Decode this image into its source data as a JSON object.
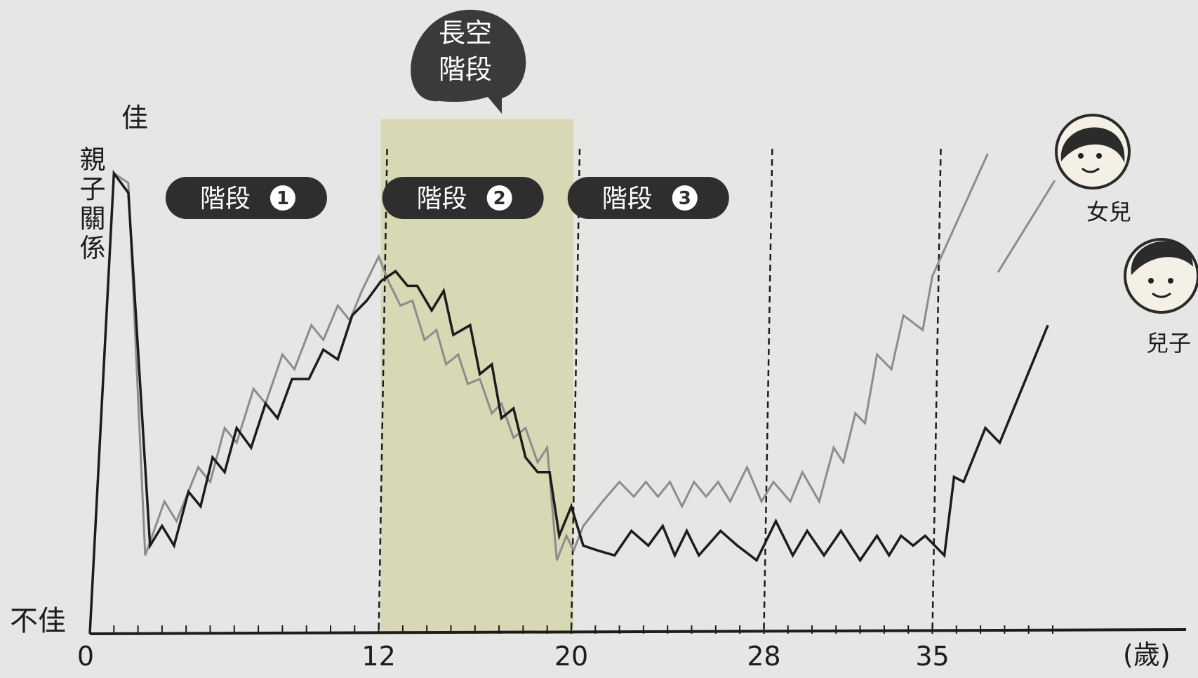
{
  "chart_data": {
    "type": "line",
    "ylabel": "親子關係",
    "y_top_label": "佳",
    "y_bottom_label": "不佳",
    "x_unit": "(歲)",
    "x_ticks": [
      0,
      12,
      20,
      28,
      35
    ],
    "xlim": [
      0,
      40
    ],
    "ylim": [
      0,
      100
    ],
    "grid": false,
    "stages": [
      {
        "label": "階段",
        "number": "1"
      },
      {
        "label": "階段",
        "number": "2"
      },
      {
        "label": "階段",
        "number": "3"
      }
    ],
    "highlight": {
      "from": 12,
      "to": 20,
      "bubble_line1": "長空",
      "bubble_line2": "階段"
    },
    "dashed_lines_at": [
      12,
      20,
      28,
      35
    ],
    "series": [
      {
        "name": "女兒",
        "color": "#8c8c8c",
        "points": [
          [
            0,
            0
          ],
          [
            1,
            94
          ],
          [
            1.6,
            92
          ],
          [
            2.3,
            16
          ],
          [
            3.1,
            27
          ],
          [
            3.6,
            23
          ],
          [
            4.5,
            34
          ],
          [
            5.0,
            31
          ],
          [
            5.6,
            42
          ],
          [
            6.1,
            39
          ],
          [
            6.8,
            50
          ],
          [
            7.3,
            47
          ],
          [
            8.0,
            57
          ],
          [
            8.5,
            54
          ],
          [
            9.2,
            63
          ],
          [
            9.7,
            60
          ],
          [
            10.3,
            67
          ],
          [
            10.8,
            64
          ],
          [
            11.3,
            70
          ],
          [
            12.0,
            77
          ],
          [
            12.4,
            72
          ],
          [
            12.9,
            67
          ],
          [
            13.4,
            68
          ],
          [
            13.9,
            60
          ],
          [
            14.4,
            62
          ],
          [
            14.8,
            55
          ],
          [
            15.3,
            57
          ],
          [
            15.7,
            51
          ],
          [
            16.2,
            52
          ],
          [
            16.7,
            45
          ],
          [
            17.1,
            47
          ],
          [
            17.6,
            40
          ],
          [
            18.1,
            42
          ],
          [
            18.6,
            35
          ],
          [
            19.0,
            38
          ],
          [
            19.4,
            15
          ],
          [
            19.8,
            20
          ],
          [
            20.1,
            17
          ],
          [
            20.5,
            22
          ],
          [
            21.3,
            27
          ],
          [
            22.0,
            31
          ],
          [
            22.6,
            28
          ],
          [
            23.1,
            31
          ],
          [
            23.6,
            28
          ],
          [
            24.1,
            31
          ],
          [
            24.6,
            26
          ],
          [
            25.1,
            31
          ],
          [
            25.6,
            28
          ],
          [
            26.1,
            31
          ],
          [
            26.6,
            27
          ],
          [
            27.3,
            34
          ],
          [
            27.9,
            27
          ],
          [
            28.4,
            31
          ],
          [
            29.1,
            27
          ],
          [
            29.6,
            33
          ],
          [
            30.3,
            27
          ],
          [
            30.9,
            38
          ],
          [
            31.3,
            35
          ],
          [
            31.8,
            45
          ],
          [
            32.2,
            43
          ],
          [
            32.7,
            57
          ],
          [
            33.3,
            54
          ],
          [
            33.8,
            65
          ],
          [
            34.6,
            62
          ],
          [
            35.0,
            73
          ],
          [
            37.3,
            98
          ]
        ]
      },
      {
        "name": "兒子",
        "color": "#1c1c1c",
        "points": [
          [
            0,
            0
          ],
          [
            1,
            94
          ],
          [
            1.6,
            90
          ],
          [
            2.5,
            18
          ],
          [
            3.0,
            22
          ],
          [
            3.5,
            18
          ],
          [
            4.1,
            29
          ],
          [
            4.6,
            26
          ],
          [
            5.1,
            36
          ],
          [
            5.6,
            33
          ],
          [
            6.1,
            42
          ],
          [
            6.7,
            38
          ],
          [
            7.3,
            47
          ],
          [
            7.8,
            44
          ],
          [
            8.4,
            52
          ],
          [
            9.1,
            52
          ],
          [
            9.7,
            58
          ],
          [
            10.3,
            56
          ],
          [
            10.9,
            65
          ],
          [
            11.5,
            68
          ],
          [
            12.1,
            72
          ],
          [
            12.7,
            74
          ],
          [
            13.2,
            71
          ],
          [
            13.6,
            71
          ],
          [
            14.2,
            66
          ],
          [
            14.7,
            70
          ],
          [
            15.1,
            61
          ],
          [
            15.8,
            63
          ],
          [
            16.2,
            53
          ],
          [
            16.7,
            55
          ],
          [
            17.1,
            44
          ],
          [
            17.6,
            46
          ],
          [
            18.1,
            36
          ],
          [
            18.6,
            33
          ],
          [
            19.1,
            33
          ],
          [
            19.5,
            20
          ],
          [
            20.0,
            26
          ],
          [
            20.5,
            18
          ],
          [
            21.1,
            17
          ],
          [
            21.8,
            16
          ],
          [
            22.5,
            21
          ],
          [
            23.2,
            18
          ],
          [
            23.8,
            22
          ],
          [
            24.3,
            16
          ],
          [
            24.8,
            21
          ],
          [
            25.3,
            16
          ],
          [
            26.2,
            21
          ],
          [
            26.9,
            18
          ],
          [
            27.7,
            15
          ],
          [
            28.5,
            23
          ],
          [
            29.2,
            16
          ],
          [
            29.8,
            21
          ],
          [
            30.5,
            16
          ],
          [
            31.2,
            21
          ],
          [
            32.0,
            15
          ],
          [
            32.7,
            20
          ],
          [
            33.2,
            16
          ],
          [
            33.7,
            20
          ],
          [
            34.2,
            18
          ],
          [
            34.7,
            20
          ],
          [
            35.5,
            16
          ],
          [
            35.9,
            32
          ],
          [
            36.3,
            31
          ],
          [
            37.2,
            42
          ],
          [
            37.8,
            39
          ],
          [
            39.8,
            63
          ]
        ]
      }
    ]
  }
}
